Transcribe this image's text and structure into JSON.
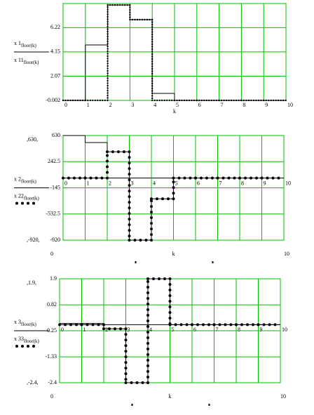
{
  "chart_data": [
    {
      "type": "line",
      "step": true,
      "xlabel": "k",
      "x": [
        0,
        1,
        2,
        3,
        4,
        5,
        6,
        7,
        8,
        9
      ],
      "series": [
        {
          "name": "x 1",
          "index": "floor(k)",
          "color": "#000000",
          "style": "solid",
          "values": [
            0,
            4.74,
            8.15,
            6.9,
            0.6,
            0,
            0,
            0,
            0,
            0
          ]
        },
        {
          "name": "x 11",
          "index": "floor(k)",
          "color": "#000000",
          "style": "dotted",
          "values": [
            0,
            0,
            8.15,
            6.9,
            0,
            0,
            0,
            0,
            0,
            0
          ]
        }
      ],
      "xlim": [
        0,
        10
      ],
      "ylim": [
        -0.002,
        8.28
      ],
      "xticks": [
        0,
        1,
        2,
        3,
        4,
        5,
        6,
        7,
        8,
        9,
        10
      ],
      "yticks": [
        -0.002,
        2.07,
        4.15,
        6.22
      ],
      "grid": true,
      "grid_color": "#00c000",
      "zero_line": false
    },
    {
      "type": "line",
      "step": true,
      "xlabel": "k",
      "x": [
        0,
        1,
        2,
        3,
        4,
        5,
        6,
        7,
        8,
        9
      ],
      "series": [
        {
          "name": "x 2",
          "index": "floor(k)",
          "color": "#000000",
          "style": "solid",
          "values": [
            630,
            526,
            390,
            -920,
            -307,
            0,
            0,
            0,
            0,
            0
          ]
        },
        {
          "name": "x 22",
          "index": "floor(k)",
          "color": "#000000",
          "style": "dotted",
          "values": [
            0,
            0,
            390,
            -920,
            -307,
            0,
            0,
            0,
            0,
            0
          ]
        }
      ],
      "xlim": [
        0,
        10
      ],
      "ylim": [
        -920,
        630
      ],
      "xticks": [
        0,
        1,
        2,
        3,
        4,
        5,
        6,
        7,
        8,
        9,
        10
      ],
      "yticks": [
        -920,
        -532.5,
        -145,
        242.5,
        630
      ],
      "grid": true,
      "grid_color": "#00c000",
      "zero_line": true,
      "limit_labels": {
        "ymax": ",630,",
        "ymin": ",-920,",
        "xmin": "0",
        "xmax": "10"
      }
    },
    {
      "type": "line",
      "step": true,
      "xlabel": "k",
      "x": [
        0,
        1,
        2,
        3,
        4,
        5,
        6,
        7,
        8,
        9
      ],
      "series": [
        {
          "name": "x 3",
          "index": "floor(k)",
          "color": "#000000",
          "style": "solid",
          "values": [
            0.05,
            0.05,
            -0.17,
            -2.4,
            1.9,
            0,
            0,
            0,
            0,
            0
          ]
        },
        {
          "name": "x 33",
          "index": "floor(k)",
          "color": "#000000",
          "style": "dotted",
          "values": [
            0,
            0,
            -0.17,
            -2.4,
            1.9,
            0,
            0,
            0,
            0,
            0
          ]
        }
      ],
      "xlim": [
        0,
        10
      ],
      "ylim": [
        -2.4,
        1.9
      ],
      "xticks": [
        0,
        1,
        2,
        3,
        4,
        5,
        6,
        7,
        8,
        9,
        10
      ],
      "yticks": [
        -2.4,
        -1.33,
        -0.25,
        0.82,
        1.9
      ],
      "grid": true,
      "grid_color": "#00c000",
      "zero_line": true,
      "limit_labels": {
        "ymax": ",1.9,",
        "ymin": ",-2.4,",
        "xmin": "0",
        "xmax": "10"
      }
    }
  ]
}
